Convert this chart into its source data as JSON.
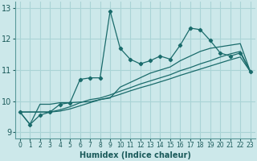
{
  "xlabel": "Humidex (Indice chaleur)",
  "bg_color": "#cce8ea",
  "grid_color": "#aad4d6",
  "line_color": "#1a6b6b",
  "xlim": [
    -0.5,
    23.5
  ],
  "ylim": [
    8.8,
    13.2
  ],
  "yticks": [
    9,
    10,
    11,
    12,
    13
  ],
  "xticks": [
    0,
    1,
    2,
    3,
    4,
    5,
    6,
    7,
    8,
    9,
    10,
    11,
    12,
    13,
    14,
    15,
    16,
    17,
    18,
    19,
    20,
    21,
    22,
    23
  ],
  "series_with_markers": [
    [
      9.65,
      9.25,
      9.55,
      9.65,
      9.9,
      9.95,
      10.7,
      10.75,
      10.75,
      12.9,
      11.7,
      11.35,
      11.2,
      11.3,
      11.45,
      11.35,
      11.8,
      12.35,
      12.3,
      11.95,
      11.55,
      11.45,
      11.55,
      10.95
    ]
  ],
  "series_smooth": [
    [
      9.65,
      9.25,
      9.9,
      9.9,
      9.95,
      9.95,
      9.97,
      9.98,
      10.05,
      10.1,
      10.45,
      10.6,
      10.75,
      10.9,
      11.0,
      11.1,
      11.3,
      11.45,
      11.6,
      11.7,
      11.75,
      11.8,
      11.85,
      10.95
    ],
    [
      9.65,
      9.65,
      9.65,
      9.65,
      9.72,
      9.82,
      9.95,
      10.05,
      10.1,
      10.2,
      10.32,
      10.43,
      10.55,
      10.65,
      10.75,
      10.85,
      10.98,
      11.08,
      11.2,
      11.3,
      11.42,
      11.52,
      11.6,
      10.95
    ],
    [
      9.65,
      9.65,
      9.65,
      9.65,
      9.68,
      9.75,
      9.85,
      9.95,
      10.05,
      10.12,
      10.22,
      10.33,
      10.43,
      10.52,
      10.62,
      10.72,
      10.83,
      10.93,
      11.03,
      11.13,
      11.23,
      11.33,
      11.42,
      10.95
    ]
  ]
}
